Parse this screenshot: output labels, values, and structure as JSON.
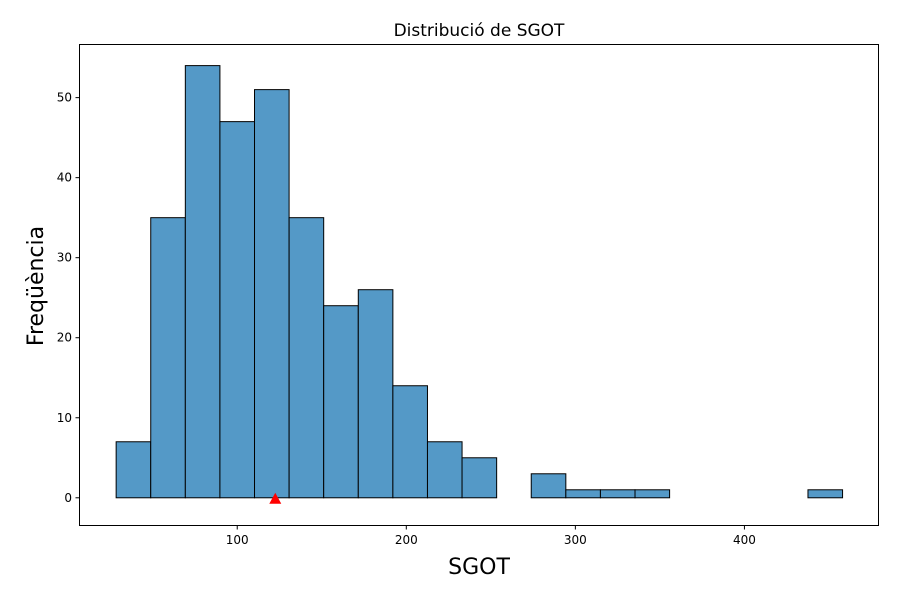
{
  "chart_data": {
    "type": "bar",
    "title": "Distribució de SGOT",
    "xlabel": "SGOT",
    "ylabel": "Freqüència",
    "bin_edges": [
      28.38,
      48.84,
      69.3,
      89.76,
      110.22,
      130.68,
      151.14,
      171.6,
      192.06,
      212.52,
      232.98,
      253.44,
      273.9,
      294.36,
      314.82,
      335.28,
      355.74,
      376.2,
      396.66,
      417.12,
      437.58,
      458.04
    ],
    "values": [
      7,
      35,
      54,
      47,
      51,
      35,
      24,
      26,
      14,
      7,
      5,
      0,
      3,
      1,
      1,
      1,
      0,
      0,
      0,
      0,
      1
    ],
    "xlim": [
      7.0,
      479.0
    ],
    "ylim": [
      -3.4,
      56.7
    ],
    "xticks": [
      "100",
      "200",
      "300",
      "400"
    ],
    "yticks": [
      "0",
      "10",
      "20",
      "30",
      "40",
      "50"
    ],
    "marker": {
      "x": 122.5,
      "y": 0,
      "shape": "triangle",
      "color": "#ff0000"
    },
    "bar_color": "#5499c7",
    "edge_color": "#000000",
    "grid": false,
    "legend": "none"
  }
}
